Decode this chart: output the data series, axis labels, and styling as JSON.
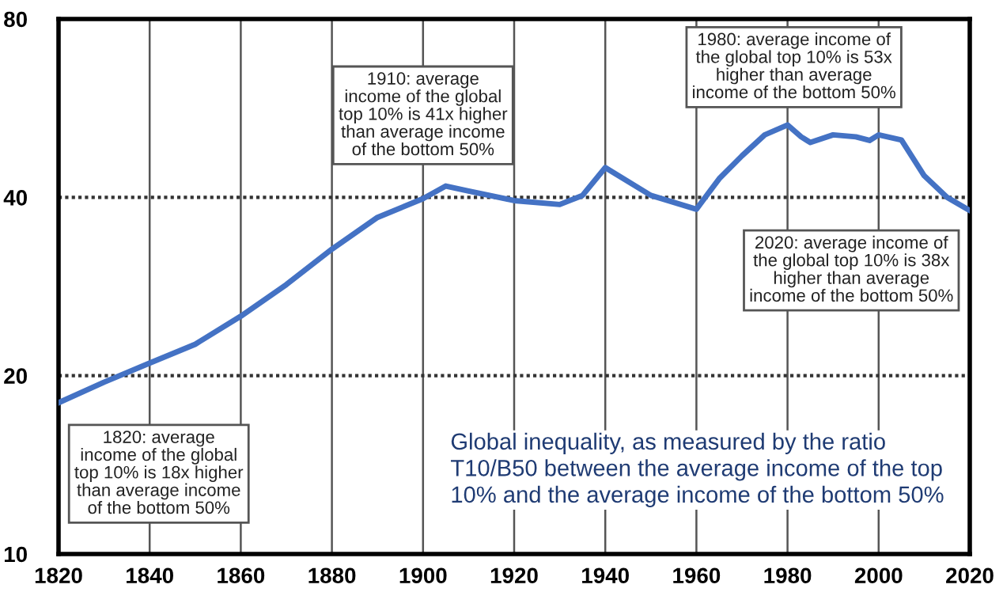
{
  "chart_data": {
    "type": "line",
    "x": [
      1820,
      1830,
      1840,
      1850,
      1860,
      1870,
      1880,
      1890,
      1900,
      1905,
      1910,
      1920,
      1930,
      1935,
      1940,
      1950,
      1960,
      1965,
      1970,
      1975,
      1980,
      1983,
      1985,
      1990,
      1995,
      1998,
      2000,
      2005,
      2010,
      2015,
      2020
    ],
    "series": [
      {
        "color": "#4472c4",
        "values": [
          18,
          19.5,
          21,
          22.6,
          25.2,
          28.5,
          32.7,
          37,
          39.8,
          41.8,
          41,
          39.5,
          38.9,
          40.3,
          44.9,
          40.3,
          38.2,
          43,
          47,
          51,
          53,
          50.6,
          49.5,
          51,
          50.6,
          49.9,
          51,
          50,
          43.5,
          40,
          38
        ]
      }
    ],
    "log": "y",
    "xlim": [
      1820,
      2020
    ],
    "xticks": [
      1820,
      1840,
      1860,
      1880,
      1900,
      1920,
      1940,
      1960,
      1980,
      2000,
      2020
    ],
    "ylim": [
      10,
      80
    ],
    "yticks": [
      10,
      20,
      40,
      80
    ],
    "grid": true,
    "line_style": "solid",
    "annotations": [
      "1910: average\nincome of the global\ntop 10% is 41x higher\nthan average income\nof the bottom 50%",
      "1980: average income of\nthe global top 10% is 53x\nhigher than average\nincome of the bottom 50%",
      "2020: average income of\nthe global top 10% is 38x\nhigher than average\nincome of the bottom 50%",
      "1820: average\nincome of the global\ntop 10% is 18x higher\nthan average income\nof the bottom 50%",
      "Global inequality, as measured by the ratio\nT10/B50 between the average income of the top\n10% and the average income of the bottom 50%"
    ]
  }
}
